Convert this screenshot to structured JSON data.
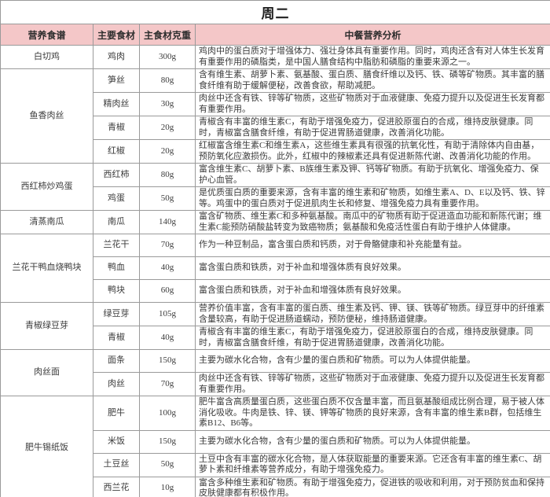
{
  "title": "周二",
  "colors": {
    "header_bg": "#f4c7c8",
    "border": "#9a9a9a",
    "text": "#3b3b3b"
  },
  "table": {
    "headers": [
      "营养食谱",
      "主要食材",
      "主食材克重",
      "中餐营养分析"
    ],
    "groups": [
      {
        "recipe": "白切鸡",
        "items": [
          {
            "ingredient": "鸡肉",
            "weight": "300g",
            "analysis": "鸡肉中的蛋白质对于增强体力、强壮身体具有重要作用。同时，鸡肉还含有对人体生长发育有重要作用的磷脂类，是中国人膳食结构中脂肪和磷脂的重要来源之一。"
          }
        ]
      },
      {
        "recipe": "鱼香肉丝",
        "items": [
          {
            "ingredient": "笋丝",
            "weight": "80g",
            "analysis": "含有维生素、胡萝卜素、氨基酸、蛋白质、膳食纤维以及钙、铁、磷等矿物质。其丰富的膳食纤维有助于缓解便秘，改善食欲，帮助减肥。"
          },
          {
            "ingredient": "精肉丝",
            "weight": "30g",
            "analysis": "肉丝中还含有铁、锌等矿物质，这些矿物质对于血液健康、免疫力提升以及促进生长发育都有重要作用。"
          },
          {
            "ingredient": "青椒",
            "weight": "20g",
            "analysis": "青椒含有丰富的维生素C，有助于增强免疫力，促进胶原蛋白的合成，维持皮肤健康。同时，青椒富含膳食纤维，有助于促进胃肠道健康，改善消化功能。"
          },
          {
            "ingredient": "红椒",
            "weight": "20g",
            "analysis": "红椒富含维生素C和维生素A，这些维生素具有很强的抗氧化性，有助于清除体内自由基，预防氧化应激损伤。此外，红椒中的辣椒素还具有促进新陈代谢、改善消化功能的作用。"
          }
        ]
      },
      {
        "recipe": "西红柿炒鸡蛋",
        "items": [
          {
            "ingredient": "西红柿",
            "weight": "80g",
            "analysis": "富含维生素C、胡萝卜素、B族维生素及钾、钙等矿物质。有助于抗氧化、增强免疫力、保护心血管。"
          },
          {
            "ingredient": "鸡蛋",
            "weight": "50g",
            "analysis": "是优质蛋白质的重要来源，含有丰富的维生素和矿物质，如维生素A、D、E以及钙、铁、锌等。鸡蛋中的蛋白质对于促进肌肉生长和修复、增强免疫力具有重要作用。"
          }
        ]
      },
      {
        "recipe": "清蒸南瓜",
        "items": [
          {
            "ingredient": "南瓜",
            "weight": "140g",
            "analysis": "富含矿物质、维生素C和多种氨基酸。南瓜中的矿物质有助于促进造血功能和新陈代谢；维生素C能预防硝酸盐转变为致癌物质；氨基酸和免疫活性蛋白有助于维护人体健康。"
          }
        ]
      },
      {
        "recipe": "兰花干鸭血烧鸭块",
        "items": [
          {
            "ingredient": "兰花干",
            "weight": "70g",
            "analysis": "作为一种豆制品，富含蛋白质和钙质，对于骨骼健康和补充能量有益。"
          },
          {
            "ingredient": "鸭血",
            "weight": "40g",
            "analysis": "富含蛋白质和铁质，对于补血和增强体质有良好效果。"
          },
          {
            "ingredient": "鸭块",
            "weight": "60g",
            "analysis": "富含蛋白质和铁质，对于补血和增强体质有良好效果。"
          }
        ]
      },
      {
        "recipe": "青椒绿豆芽",
        "items": [
          {
            "ingredient": "绿豆芽",
            "weight": "105g",
            "analysis": "营养价值丰富，含有丰富的蛋白质、维生素及钙、钾、镁、铁等矿物质。绿豆芽中的纤维素含量较高，有助于促进肠道蠕动，预防便秘，维持肠道健康。"
          },
          {
            "ingredient": "青椒",
            "weight": "40g",
            "analysis": "青椒含有丰富的维生素C，有助于增强免疫力，促进胶原蛋白的合成，维持皮肤健康。同时，青椒富含膳食纤维，有助于促进胃肠道健康，改善消化功能。"
          }
        ]
      },
      {
        "recipe": "肉丝面",
        "items": [
          {
            "ingredient": "面条",
            "weight": "150g",
            "analysis": "主要为碳水化合物，含有少量的蛋白质和矿物质。可以为人体提供能量。"
          },
          {
            "ingredient": "肉丝",
            "weight": "70g",
            "analysis": "肉丝中还含有铁、锌等矿物质，这些矿物质对于血液健康、免疫力提升以及促进生长发育都有重要作用。"
          }
        ]
      },
      {
        "recipe": "肥牛锡纸饭",
        "items": [
          {
            "ingredient": "肥牛",
            "weight": "100g",
            "analysis": "肥牛富含高质量蛋白质，这些蛋白质不仅含量丰富，而且氨基酸组成比例合理，易于被人体消化吸收。牛肉是铁、锌、镁、钾等矿物质的良好来源，含有丰富的维生素B群，包括维生素B12、B6等。"
          },
          {
            "ingredient": "米饭",
            "weight": "150g",
            "analysis": "主要为碳水化合物，含有少量的蛋白质和矿物质。可以为人体提供能量。"
          },
          {
            "ingredient": "土豆丝",
            "weight": "50g",
            "analysis": "土豆中含有丰富的碳水化合物，是人体获取能量的重要来源。它还含有丰富的维生素C、胡萝卜素和纤维素等营养成分，有助于增强免疫力。"
          },
          {
            "ingredient": "西兰花",
            "weight": "10g",
            "analysis": "富含多种维生素和矿物质。有助于增强免疫力，促进铁的吸收和利用，对于预防贫血和保持皮肤健康都有积极作用。"
          }
        ]
      }
    ]
  }
}
